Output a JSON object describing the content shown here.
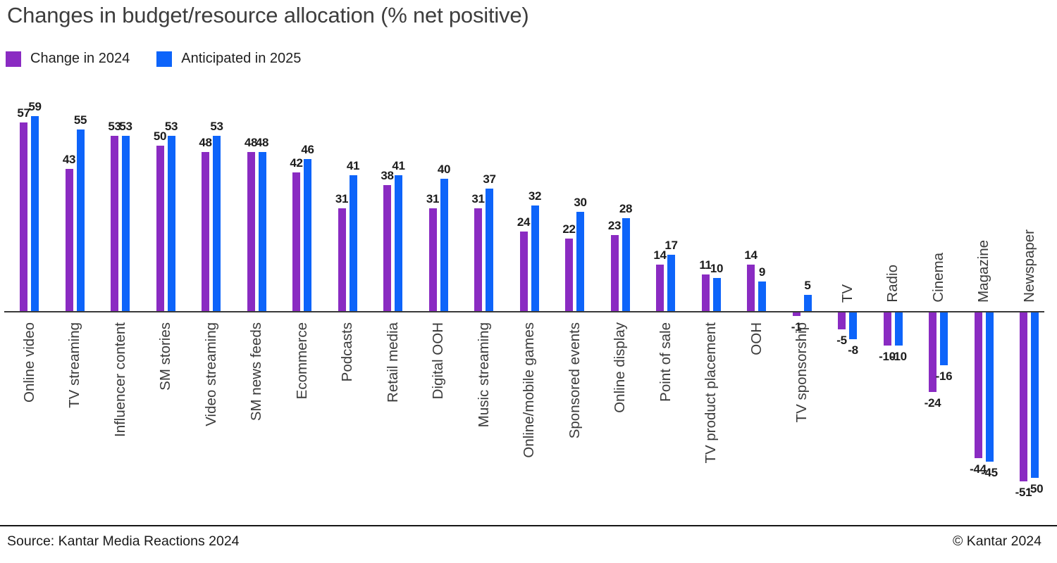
{
  "title": "Changes in budget/resource allocation (% net positive)",
  "legend": [
    {
      "label": "Change in 2024",
      "color": "#8A2BC2"
    },
    {
      "label": "Anticipated in 2025",
      "color": "#0D64FA"
    }
  ],
  "footer": {
    "source": "Source: Kantar Media Reactions 2024",
    "copyright": "© Kantar 2024"
  },
  "chart_data": {
    "type": "bar",
    "title": "Changes in budget/resource allocation (% net positive)",
    "categories": [
      "Online video",
      "TV streaming",
      "Influencer content",
      "SM stories",
      "Video streaming",
      "SM news feeds",
      "Ecommerce",
      "Podcasts",
      "Retail media",
      "Digital OOH",
      "Music streaming",
      "Online/mobile games",
      "Sponsored events",
      "Online display",
      "Point of sale",
      "TV product placement",
      "OOH",
      "TV sponsorship",
      "TV",
      "Radio",
      "Cinema",
      "Magazine",
      "Newspaper"
    ],
    "series": [
      {
        "name": "Change in 2024",
        "color": "#8A2BC2",
        "values": [
          57,
          43,
          53,
          50,
          48,
          48,
          42,
          31,
          38,
          31,
          31,
          24,
          22,
          23,
          14,
          11,
          14,
          -1,
          -5,
          -10,
          -24,
          -44,
          -51
        ]
      },
      {
        "name": "Anticipated in 2025",
        "color": "#0D64FA",
        "values": [
          59,
          55,
          53,
          53,
          53,
          48,
          46,
          41,
          41,
          40,
          37,
          32,
          30,
          28,
          17,
          10,
          9,
          5,
          -8,
          -10,
          -16,
          -45,
          -50
        ]
      }
    ],
    "xlabel": "",
    "ylabel": "",
    "ylim": [
      -51,
      59
    ],
    "grid": false,
    "data_labels": true,
    "legend_position": "top-left",
    "axis_line": "zero-baseline"
  }
}
